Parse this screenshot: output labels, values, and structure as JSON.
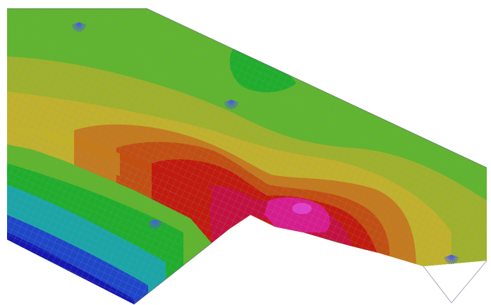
{
  "viewport": {
    "label": "",
    "colors": {
      "background": "#ffffff",
      "deep_blue": "#1616b0",
      "blue": "#1e46c8",
      "teal": "#1aa6a6",
      "green": "#1fae2a",
      "green_light": "#5fb52c",
      "yellow_green": "#9fb22a",
      "olive_yellow": "#c2b22a",
      "orange": "#c57a1c",
      "orange_red": "#c24e10",
      "red": "#c21a0c",
      "crimson": "#c4103e",
      "magenta": "#d81c8c",
      "magenta_peak": "#e040c8",
      "mesh_line": "#8c8fb8",
      "support_marker": "#4a62d8"
    },
    "supports": [
      {
        "name": "support-marker-1",
        "icon": "fan-support-icon"
      },
      {
        "name": "support-marker-2",
        "icon": "fan-support-icon"
      },
      {
        "name": "support-marker-3",
        "icon": "fan-support-icon"
      },
      {
        "name": "support-marker-4",
        "icon": "fan-support-icon"
      }
    ]
  }
}
